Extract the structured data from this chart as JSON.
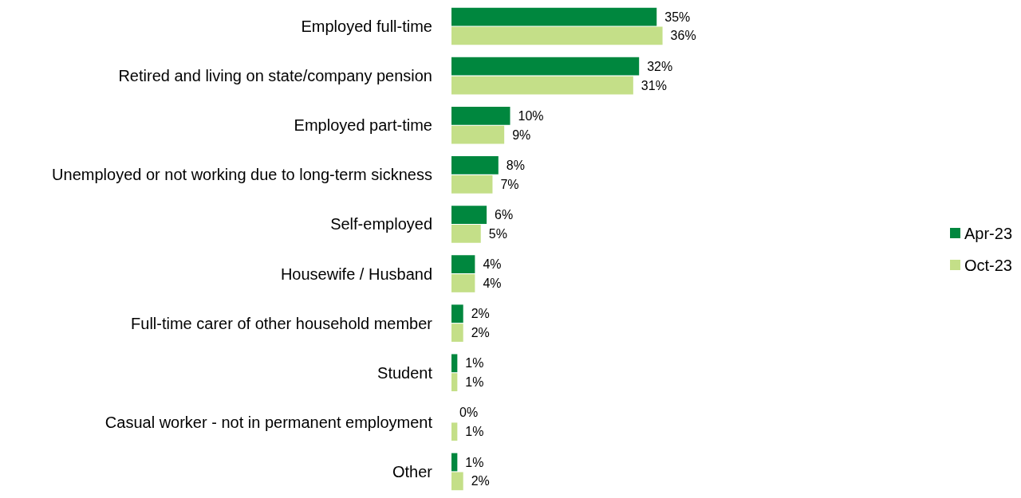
{
  "chart_data": {
    "type": "bar",
    "orientation": "horizontal",
    "categories": [
      "Employed full-time",
      "Retired and living on state/company pension",
      "Employed part-time",
      "Unemployed or not working due to long-term sickness",
      "Self-employed",
      "Housewife / Husband",
      "Full-time carer of other household member",
      "Student",
      "Casual worker - not in permanent employment",
      "Other"
    ],
    "series": [
      {
        "name": "Apr-23",
        "color": "#00873e",
        "values": [
          35,
          32,
          10,
          8,
          6,
          4,
          2,
          1,
          0,
          1
        ],
        "value_labels": [
          "35%",
          "32%",
          "10%",
          "8%",
          "6%",
          "4%",
          "2%",
          "1%",
          "0%",
          "1%"
        ]
      },
      {
        "name": "Oct-23",
        "color": "#c4df88",
        "values": [
          36,
          31,
          9,
          7,
          5,
          4,
          2,
          1,
          1,
          2
        ],
        "value_labels": [
          "36%",
          "31%",
          "9%",
          "7%",
          "5%",
          "4%",
          "2%",
          "1%",
          "1%",
          "2%"
        ]
      }
    ],
    "legend": "right"
  }
}
